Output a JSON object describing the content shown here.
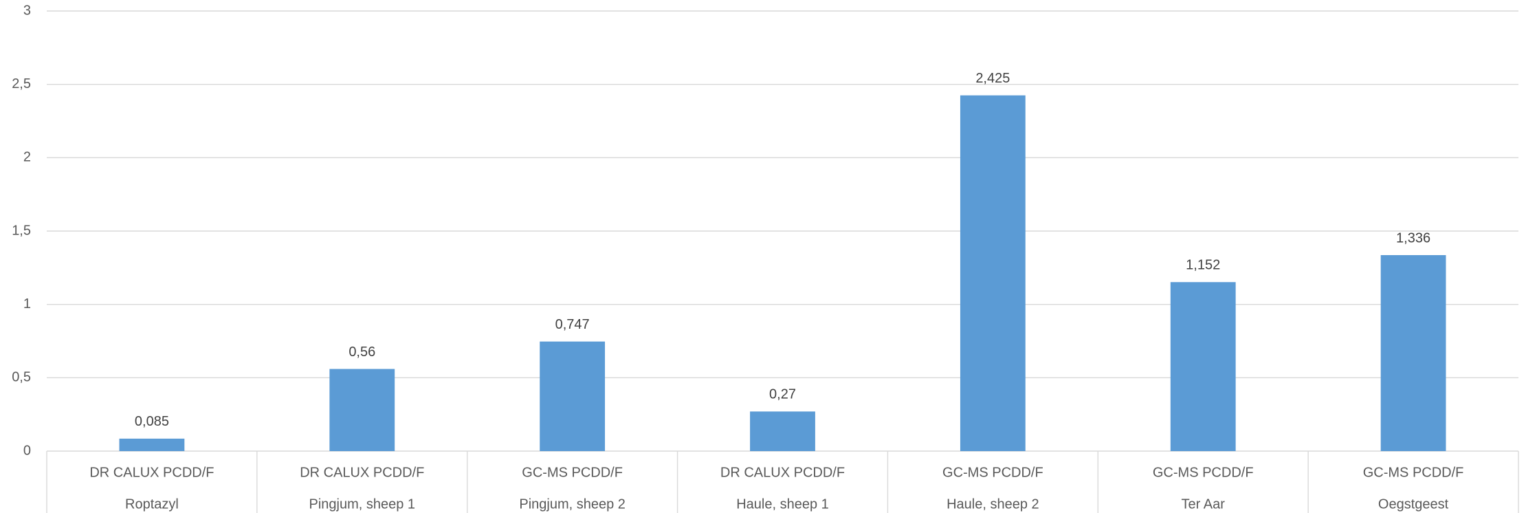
{
  "chart_data": {
    "type": "bar",
    "categories": [
      "Roptazyl",
      "Pingjum, sheep 1",
      "Pingjum, sheep 2",
      "Haule, sheep 1",
      "Haule, sheep 2",
      "Ter Aar",
      "Oegstgeest"
    ],
    "category_methods": [
      "DR CALUX PCDD/F",
      "DR CALUX PCDD/F",
      "GC-MS PCDD/F",
      "DR CALUX PCDD/F",
      "GC-MS PCDD/F",
      "GC-MS PCDD/F",
      "GC-MS PCDD/F"
    ],
    "values": [
      0.085,
      0.56,
      0.747,
      0.27,
      2.425,
      1.152,
      1.336
    ],
    "value_labels": [
      "0,085",
      "0,56",
      "0,747",
      "0,27",
      "2,425",
      "1,152",
      "1,336"
    ],
    "color": "#5b9bd5",
    "ylim": [
      0,
      3
    ],
    "yticks": [
      0,
      {
        "value": 0.5,
        "label": "0,5"
      },
      1,
      {
        "value": 1.5,
        "label": "1,5"
      },
      2,
      {
        "value": 2.5,
        "label": "2,5"
      },
      3
    ],
    "grid": true
  }
}
